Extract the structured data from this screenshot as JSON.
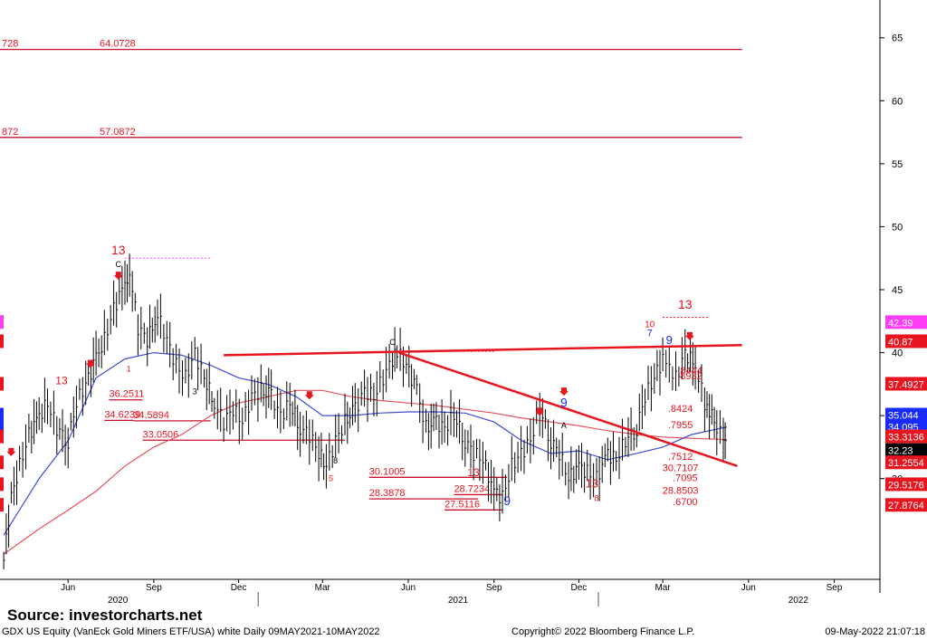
{
  "source_label": "Source:  investorcharts.net",
  "footer": {
    "left": "GDX US Equity (VanEck Gold Miners ETF/USA) white  Daily 09MAY2021-10MAY2022",
    "center": "Copyright© 2022 Bloomberg Finance L.P.",
    "right": "09-May-2022 21:07:18"
  },
  "colors": {
    "price": "#000000",
    "ma_fast": "#3b4bd6",
    "ma_slow": "#e8505b",
    "trend": "#e8141e",
    "support": "#c8102e",
    "tag_red": "#e8141e",
    "tag_magenta": "#ff3df5",
    "tag_blue": "#1a2bff",
    "tag_black": "#000000"
  },
  "chart_data": {
    "type": "line",
    "title": "",
    "xlabel": "",
    "ylabel": "",
    "ylim": [
      22,
      68
    ],
    "y_ticks": [
      30,
      35,
      40,
      45,
      50,
      55,
      60,
      65
    ],
    "x_ticks": [
      {
        "label": "Jun",
        "year_label": "2020",
        "date": "2020-06-01"
      },
      {
        "label": "Sep",
        "date": "2020-09-01"
      },
      {
        "label": "Dec",
        "date": "2020-12-01"
      },
      {
        "label": "Mar",
        "date": "2021-03-01"
      },
      {
        "label": "Jun",
        "year_label": "2021",
        "date": "2021-06-01"
      },
      {
        "label": "Sep",
        "date": "2021-09-01"
      },
      {
        "label": "Dec",
        "date": "2021-12-01"
      },
      {
        "label": "Mar",
        "date": "2022-03-01"
      },
      {
        "label": "Jun",
        "year_label": "2022",
        "date": "2022-06-01"
      },
      {
        "label": "Sep",
        "date": "2022-09-01"
      }
    ],
    "x_range": [
      "2020-03-20",
      "2022-10-20"
    ],
    "series": [
      {
        "kind": "price",
        "x": [
          "2020-03-24",
          "2020-04-01",
          "2020-04-10",
          "2020-04-20",
          "2020-05-01",
          "2020-05-10",
          "2020-05-20",
          "2020-06-01",
          "2020-06-10",
          "2020-06-20",
          "2020-07-01",
          "2020-07-10",
          "2020-07-20",
          "2020-08-01",
          "2020-08-06",
          "2020-08-15",
          "2020-08-25",
          "2020-09-05",
          "2020-09-15",
          "2020-09-25",
          "2020-10-05",
          "2020-10-15",
          "2020-10-25",
          "2020-11-05",
          "2020-11-15",
          "2020-11-25",
          "2020-12-05",
          "2020-12-15",
          "2020-12-25",
          "2021-01-05",
          "2021-01-15",
          "2021-01-25",
          "2021-02-05",
          "2021-02-15",
          "2021-02-25",
          "2021-03-05",
          "2021-03-15",
          "2021-03-25",
          "2021-04-05",
          "2021-04-15",
          "2021-04-25",
          "2021-05-05",
          "2021-05-15",
          "2021-05-20",
          "2021-05-30",
          "2021-06-10",
          "2021-06-20",
          "2021-07-01",
          "2021-07-10",
          "2021-07-20",
          "2021-08-01",
          "2021-08-10",
          "2021-08-20",
          "2021-09-01",
          "2021-09-10",
          "2021-09-20",
          "2021-09-30",
          "2021-10-10",
          "2021-10-20",
          "2021-11-01",
          "2021-11-10",
          "2021-11-20",
          "2021-12-01",
          "2021-12-10",
          "2021-12-20",
          "2022-01-01",
          "2022-01-10",
          "2022-01-20",
          "2022-02-01",
          "2022-02-10",
          "2022-02-20",
          "2022-03-01",
          "2022-03-08",
          "2022-03-15",
          "2022-03-25",
          "2022-04-05",
          "2022-04-15",
          "2022-04-20",
          "2022-04-28",
          "2022-05-05",
          "2022-05-09"
        ],
        "values": [
          23.5,
          28.5,
          31,
          33.5,
          35,
          36,
          34,
          33,
          36,
          37.5,
          39.5,
          41,
          43.5,
          45.5,
          46.5,
          42,
          41,
          43,
          41,
          39,
          38,
          40,
          38,
          36,
          34.5,
          35.5,
          34.5,
          36.5,
          37,
          36.5,
          35,
          36,
          34,
          33.5,
          32,
          31,
          33,
          34.5,
          35.5,
          37,
          36.5,
          38,
          39.5,
          40,
          39,
          37,
          34,
          34.5,
          34,
          35,
          33,
          32,
          31.5,
          29,
          28.5,
          31,
          32,
          33,
          35.5,
          33,
          32,
          30,
          31,
          30.5,
          30,
          32,
          31.5,
          33,
          34,
          36.5,
          38,
          39.5,
          38.5,
          38,
          40,
          39,
          36,
          35.5,
          34,
          33,
          32.2
        ]
      },
      {
        "kind": "ma_fast",
        "x": [
          "2020-03-24",
          "2020-05-01",
          "2020-06-01",
          "2020-07-01",
          "2020-08-01",
          "2020-09-01",
          "2020-10-01",
          "2020-11-01",
          "2020-12-01",
          "2021-01-01",
          "2021-02-01",
          "2021-03-01",
          "2021-04-01",
          "2021-05-01",
          "2021-06-01",
          "2021-07-01",
          "2021-08-01",
          "2021-09-01",
          "2021-10-01",
          "2021-11-01",
          "2021-12-01",
          "2022-01-01",
          "2022-02-01",
          "2022-03-01",
          "2022-04-01",
          "2022-05-09"
        ],
        "values": [
          25.5,
          30,
          33,
          38,
          39.5,
          40,
          39.8,
          39,
          38,
          37.5,
          36.5,
          35,
          35,
          35.2,
          35.3,
          35.3,
          35.2,
          34.5,
          33,
          32,
          32.2,
          31.5,
          32,
          32.5,
          33.5,
          34.1
        ]
      },
      {
        "kind": "ma_slow",
        "x": [
          "2020-03-24",
          "2020-05-01",
          "2020-06-01",
          "2020-07-01",
          "2020-08-01",
          "2020-09-01",
          "2020-10-01",
          "2020-11-01",
          "2020-12-01",
          "2021-01-01",
          "2021-02-01",
          "2021-03-01",
          "2021-04-01",
          "2021-05-01",
          "2021-06-01",
          "2021-07-01",
          "2021-08-01",
          "2021-09-01",
          "2021-10-01",
          "2021-11-01",
          "2021-12-01",
          "2022-01-01",
          "2022-02-01",
          "2022-03-01",
          "2022-04-01",
          "2022-05-09"
        ],
        "values": [
          24,
          26,
          27.5,
          29,
          31,
          32.5,
          33.5,
          35,
          36,
          36.5,
          37,
          37,
          36.5,
          36.2,
          36,
          35.8,
          35.5,
          35.2,
          34.8,
          34.5,
          34.2,
          33.8,
          33.5,
          33.3,
          33.2,
          33.1
        ]
      }
    ],
    "trend_lines": [
      {
        "x": [
          "2020-11-15",
          "2022-05-25"
        ],
        "y": [
          39.8,
          40.6
        ]
      },
      {
        "x": [
          "2021-05-22",
          "2022-05-20"
        ],
        "y": [
          40,
          31
        ]
      }
    ],
    "reference_lines": [
      {
        "value": 64.0728,
        "label": "64.0728",
        "left_label": "728",
        "style": "solid",
        "x_from": "2020-03-20",
        "x_to": "2022-05-25"
      },
      {
        "value": 57.0872,
        "label": "57.0872",
        "left_label": "872",
        "style": "solid",
        "x_from": "2020-03-20",
        "x_to": "2022-05-25"
      },
      {
        "value": 36.2511,
        "label": "36.2511",
        "style": "solid",
        "x_from": "2020-07-15",
        "x_to": "2020-08-20"
      },
      {
        "value": 34.6239,
        "label": "34.6239",
        "style": "solid",
        "x_from": "2020-07-10",
        "x_to": "2020-08-10"
      },
      {
        "value": 34.5894,
        "label": "34.5894",
        "style": "solid",
        "x_from": "2020-08-10",
        "x_to": "2020-11-01"
      },
      {
        "value": 33.0506,
        "label": "33.0506",
        "style": "solid",
        "x_from": "2020-08-20",
        "x_to": "2021-03-25"
      },
      {
        "value": 30.1005,
        "label": "30.1005",
        "style": "solid",
        "x_from": "2021-04-20",
        "x_to": "2021-09-15"
      },
      {
        "value": 28.7234,
        "label": "28.7234",
        "style": "solid",
        "x_from": "2021-07-20",
        "x_to": "2021-09-10"
      },
      {
        "value": 28.3878,
        "label": "28.3878",
        "style": "solid",
        "x_from": "2021-04-20",
        "x_to": "2021-08-15"
      },
      {
        "value": 27.5116,
        "label": "27.5116",
        "style": "solid",
        "x_from": "2021-07-10",
        "x_to": "2021-09-10"
      },
      {
        "value": 40.1,
        "label": "",
        "style": "dotted",
        "x_from": "2021-05-25",
        "x_to": "2021-09-01"
      },
      {
        "value": 47.5,
        "label": "",
        "style": "dotted",
        "x_from": "2020-08-01",
        "x_to": "2020-11-01"
      },
      {
        "value": 42.8,
        "label": "",
        "style": "dotted",
        "x_from": "2022-03-01",
        "x_to": "2022-04-20"
      }
    ],
    "price_tags": [
      {
        "label": "42.39",
        "value": 42.39,
        "color": "#ff3df5"
      },
      {
        "label": "40.87",
        "value": 40.87,
        "color": "#e8141e"
      },
      {
        "label": "37.4927",
        "value": 37.4927,
        "color": "#e8141e"
      },
      {
        "label": "35.044",
        "value": 35.044,
        "color": "#1a2bff"
      },
      {
        "label": "34.095",
        "value": 34.095,
        "color": "#1a2bff"
      },
      {
        "label": "33.3136",
        "value": 33.3136,
        "color": "#e8141e"
      },
      {
        "label": "32.23",
        "value": 32.23,
        "color": "#000000"
      },
      {
        "label": "31.2554",
        "value": 31.2554,
        "color": "#e8141e"
      },
      {
        "label": "29.5176",
        "value": 29.5176,
        "color": "#e8141e"
      },
      {
        "label": "27.8764",
        "value": 27.8764,
        "color": "#e8141e"
      }
    ],
    "annotations": [
      {
        "text": "13",
        "x": "2020-07-25",
        "y": 47.8,
        "color": "#e8141e",
        "size": 14
      },
      {
        "text": "13",
        "x": "2022-03-25",
        "y": 43.5,
        "color": "#e8141e",
        "size": 14
      },
      {
        "text": "13",
        "x": "2020-05-25",
        "y": 37.5,
        "color": "#e8141e",
        "size": 12
      },
      {
        "text": "13",
        "x": "2021-12-15",
        "y": 29.3,
        "color": "#e8141e",
        "size": 13
      },
      {
        "text": "13",
        "x": "2021-08-10",
        "y": 30.2,
        "color": "#e8141e",
        "size": 12
      },
      {
        "text": "9",
        "x": "2021-11-15",
        "y": 35.7,
        "color": "#1a2bff",
        "size": 14
      },
      {
        "text": "9",
        "x": "2021-09-15",
        "y": 27.9,
        "color": "#1a2bff",
        "size": 14
      },
      {
        "text": "9",
        "x": "2022-03-08",
        "y": 40.7,
        "color": "#1a2bff",
        "size": 13
      },
      {
        "text": "7",
        "x": "2022-02-15",
        "y": 41.3,
        "color": "#1a2bff",
        "size": 11
      },
      {
        "text": "10",
        "x": "2022-02-15",
        "y": 42.0,
        "color": "#e8141e",
        "size": 10
      },
      {
        "text": "C",
        "x": "2020-07-25",
        "y": 46.8,
        "color": "#000000",
        "size": 9
      },
      {
        "text": "C",
        "x": "2021-05-15",
        "y": 40.6,
        "color": "#000000",
        "size": 9
      },
      {
        "text": "A",
        "x": "2021-11-15",
        "y": 34.0,
        "color": "#000000",
        "size": 9
      },
      {
        "text": "1",
        "x": "2020-08-05",
        "y": 38.5,
        "color": "#e8141e",
        "size": 9
      },
      {
        "text": "3",
        "x": "2020-10-15",
        "y": 36.7,
        "color": "#000000",
        "size": 9
      },
      {
        "text": "8",
        "x": "2021-03-15",
        "y": 31.2,
        "color": "#000000",
        "size": 9
      },
      {
        "text": "5",
        "x": "2021-03-10",
        "y": 29.8,
        "color": "#e8141e",
        "size": 9
      },
      {
        "text": "8",
        "x": "2021-12-20",
        "y": 28.2,
        "color": "#e8141e",
        "size": 9
      },
      {
        "text": ".8424",
        "x": "2022-03-20",
        "y": 35.3,
        "color": "#e8141e",
        "size": 11
      },
      {
        "text": ".7955",
        "x": "2022-03-20",
        "y": 34.0,
        "color": "#e8141e",
        "size": 11
      },
      {
        "text": ".7512",
        "x": "2022-03-20",
        "y": 31.5,
        "color": "#e8141e",
        "size": 11
      },
      {
        "text": "30.7107",
        "x": "2022-03-20",
        "y": 30.6,
        "color": "#e8141e",
        "size": 11
      },
      {
        "text": ".7095",
        "x": "2022-03-25",
        "y": 29.8,
        "color": "#e8141e",
        "size": 11
      },
      {
        "text": "28.8503",
        "x": "2022-03-20",
        "y": 28.8,
        "color": "#e8141e",
        "size": 11
      },
      {
        "text": ".6700",
        "x": "2022-03-25",
        "y": 27.9,
        "color": "#e8141e",
        "size": 11
      },
      {
        "text": ".8444",
        "x": "2022-03-30",
        "y": 38.3,
        "color": "#e8141e",
        "size": 11
      },
      {
        "text": ".8932",
        "x": "2022-03-30",
        "y": 37.9,
        "color": "#e8141e",
        "size": 11
      }
    ],
    "arrows": [
      {
        "x": "2020-07-25",
        "y": 46.0,
        "dir": "down",
        "color": "#e8141e"
      },
      {
        "x": "2022-03-30",
        "y": 41.2,
        "dir": "down",
        "color": "#e8141e"
      },
      {
        "x": "2021-11-15",
        "y": 36.8,
        "dir": "down",
        "color": "#e8141e"
      },
      {
        "x": "2021-10-20",
        "y": 35.2,
        "dir": "down",
        "color": "#e8141e"
      },
      {
        "x": "2021-02-15",
        "y": 36.5,
        "dir": "down",
        "color": "#e8141e"
      },
      {
        "x": "2020-06-25",
        "y": 39.0,
        "dir": "down",
        "color": "#e8141e"
      },
      {
        "x": "2020-04-01",
        "y": 32.0,
        "dir": "down",
        "color": "#e8141e"
      }
    ]
  }
}
